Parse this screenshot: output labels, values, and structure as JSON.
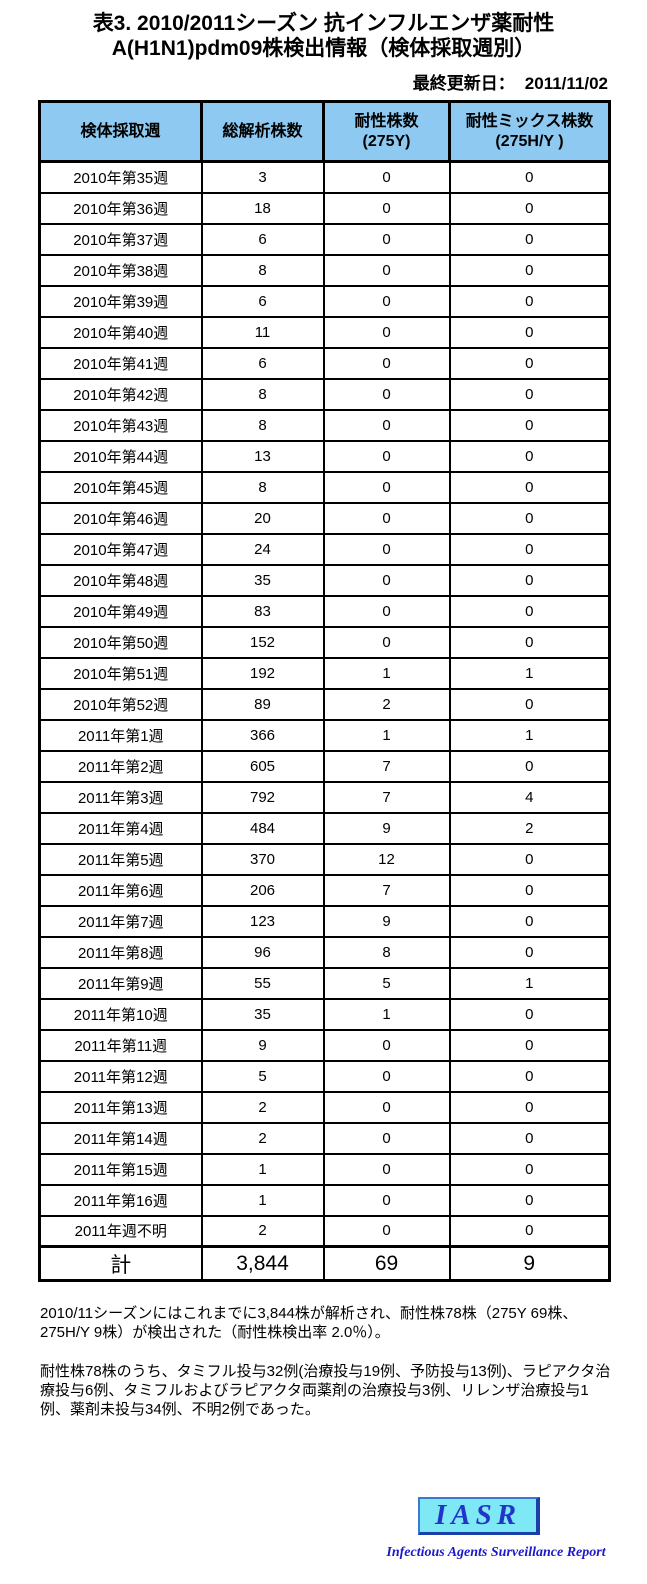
{
  "title": {
    "line1": "表3. 2010/2011シーズン 抗インフルエンザ薬耐性",
    "line2": "A(H1N1)pdm09株検出情報（検体採取週別）"
  },
  "updated": {
    "label": "最終更新日：",
    "value": "2011/11/02"
  },
  "colors": {
    "header_bg": "#8DC9F1",
    "logo_box_bg": "#7FE8F5",
    "logo_text": "#2335C8",
    "logo_subtitle": "#1A1ACC",
    "border": "#000000"
  },
  "table": {
    "headers": [
      "検体採取週",
      "総解析株数",
      "耐性株数\n(275Y)",
      "耐性ミックス株数\n(275H/Y )"
    ],
    "rows": [
      {
        "week": "2010年第35週",
        "total": "3",
        "resistant": "0",
        "mix": "0"
      },
      {
        "week": "2010年第36週",
        "total": "18",
        "resistant": "0",
        "mix": "0"
      },
      {
        "week": "2010年第37週",
        "total": "6",
        "resistant": "0",
        "mix": "0"
      },
      {
        "week": "2010年第38週",
        "total": "8",
        "resistant": "0",
        "mix": "0"
      },
      {
        "week": "2010年第39週",
        "total": "6",
        "resistant": "0",
        "mix": "0"
      },
      {
        "week": "2010年第40週",
        "total": "11",
        "resistant": "0",
        "mix": "0"
      },
      {
        "week": "2010年第41週",
        "total": "6",
        "resistant": "0",
        "mix": "0"
      },
      {
        "week": "2010年第42週",
        "total": "8",
        "resistant": "0",
        "mix": "0"
      },
      {
        "week": "2010年第43週",
        "total": "8",
        "resistant": "0",
        "mix": "0"
      },
      {
        "week": "2010年第44週",
        "total": "13",
        "resistant": "0",
        "mix": "0"
      },
      {
        "week": "2010年第45週",
        "total": "8",
        "resistant": "0",
        "mix": "0"
      },
      {
        "week": "2010年第46週",
        "total": "20",
        "resistant": "0",
        "mix": "0"
      },
      {
        "week": "2010年第47週",
        "total": "24",
        "resistant": "0",
        "mix": "0"
      },
      {
        "week": "2010年第48週",
        "total": "35",
        "resistant": "0",
        "mix": "0"
      },
      {
        "week": "2010年第49週",
        "total": "83",
        "resistant": "0",
        "mix": "0"
      },
      {
        "week": "2010年第50週",
        "total": "152",
        "resistant": "0",
        "mix": "0"
      },
      {
        "week": "2010年第51週",
        "total": "192",
        "resistant": "1",
        "mix": "1"
      },
      {
        "week": "2010年第52週",
        "total": "89",
        "resistant": "2",
        "mix": "0"
      },
      {
        "week": "2011年第1週",
        "total": "366",
        "resistant": "1",
        "mix": "1"
      },
      {
        "week": "2011年第2週",
        "total": "605",
        "resistant": "7",
        "mix": "0"
      },
      {
        "week": "2011年第3週",
        "total": "792",
        "resistant": "7",
        "mix": "4"
      },
      {
        "week": "2011年第4週",
        "total": "484",
        "resistant": "9",
        "mix": "2"
      },
      {
        "week": "2011年第5週",
        "total": "370",
        "resistant": "12",
        "mix": "0"
      },
      {
        "week": "2011年第6週",
        "total": "206",
        "resistant": "7",
        "mix": "0"
      },
      {
        "week": "2011年第7週",
        "total": "123",
        "resistant": "9",
        "mix": "0"
      },
      {
        "week": "2011年第8週",
        "total": "96",
        "resistant": "8",
        "mix": "0"
      },
      {
        "week": "2011年第9週",
        "total": "55",
        "resistant": "5",
        "mix": "1"
      },
      {
        "week": "2011年第10週",
        "total": "35",
        "resistant": "1",
        "mix": "0"
      },
      {
        "week": "2011年第11週",
        "total": "9",
        "resistant": "0",
        "mix": "0"
      },
      {
        "week": "2011年第12週",
        "total": "5",
        "resistant": "0",
        "mix": "0"
      },
      {
        "week": "2011年第13週",
        "total": "2",
        "resistant": "0",
        "mix": "0"
      },
      {
        "week": "2011年第14週",
        "total": "2",
        "resistant": "0",
        "mix": "0"
      },
      {
        "week": "2011年第15週",
        "total": "1",
        "resistant": "0",
        "mix": "0"
      },
      {
        "week": "2011年第16週",
        "total": "1",
        "resistant": "0",
        "mix": "0"
      },
      {
        "week": "2011年週不明",
        "total": "2",
        "resistant": "0",
        "mix": "0"
      }
    ],
    "total": {
      "label": "計",
      "total": "3,844",
      "resistant": "69",
      "mix": "9"
    }
  },
  "notes": [
    "2010/11シーズンにはこれまでに3,844株が解析され、耐性株78株（275Y 69株、275H/Y 9株）が検出された（耐性株検出率 2.0％）。",
    "耐性株78株のうち、タミフル投与32例(治療投与19例、予防投与13例)、ラピアクタ治療投与6例、タミフルおよびラピアクタ両薬剤の治療投与3例、リレンザ治療投与1例、薬剤未投与34例、不明2例であった。"
  ],
  "logo": {
    "text": "IASR",
    "subtitle": "Infectious Agents Surveillance Report"
  }
}
